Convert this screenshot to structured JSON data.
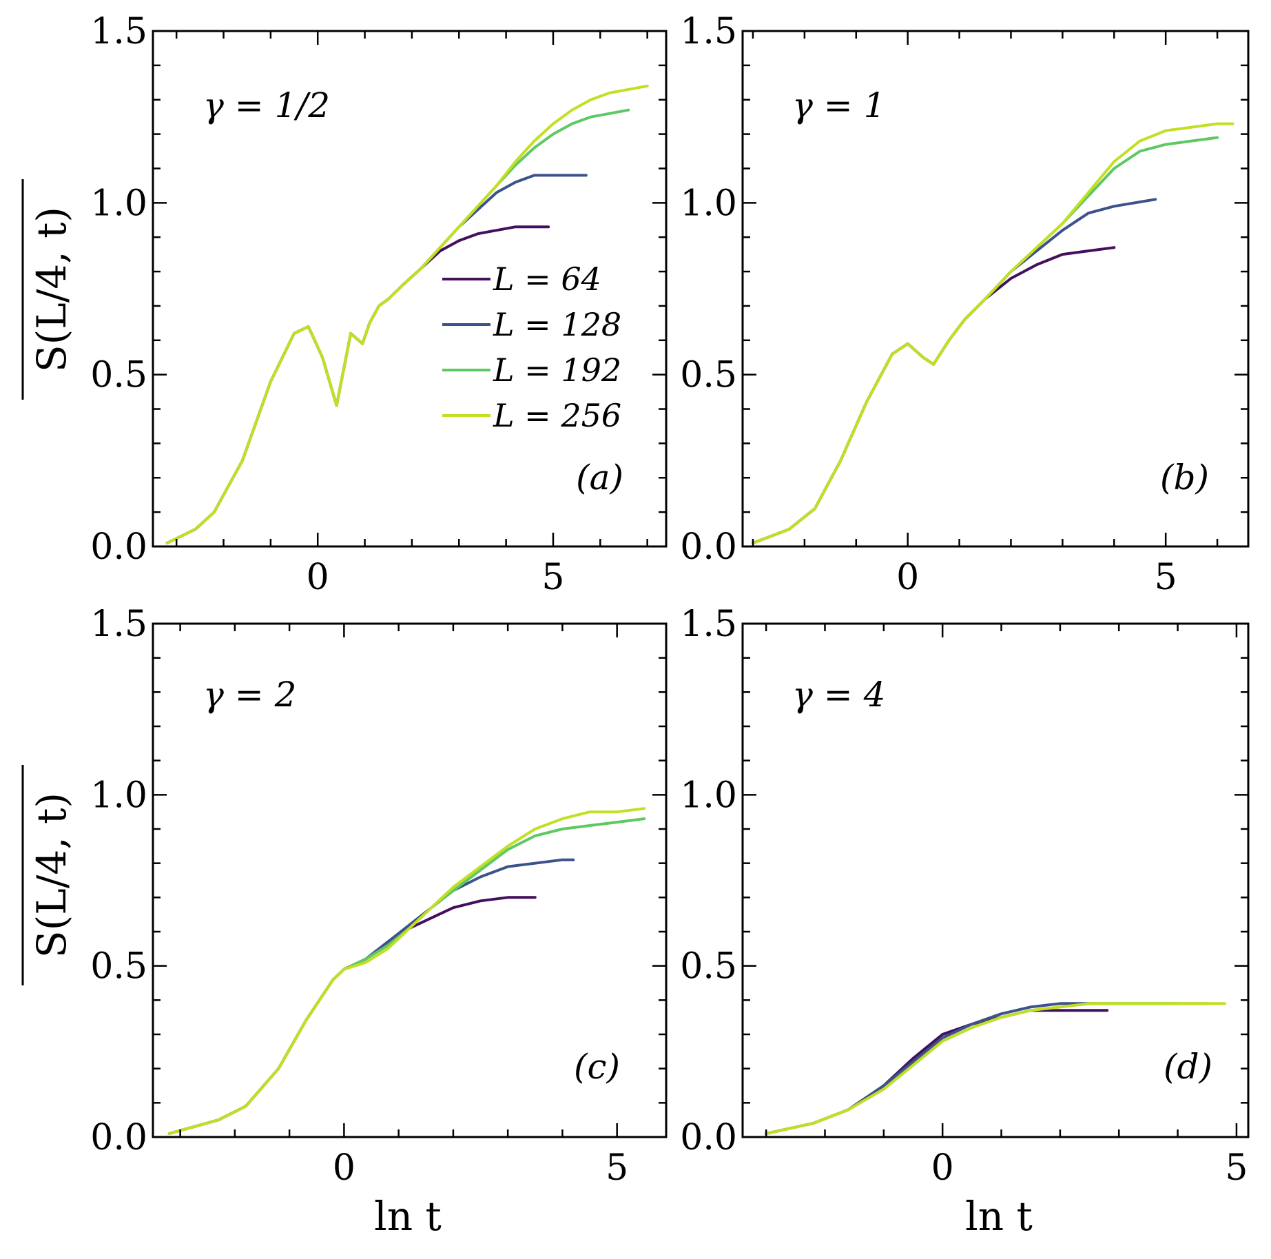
{
  "figure": {
    "ylabel": "S(L/4, t)",
    "xlabel": "ln t",
    "legend": {
      "placement": "panel (a), center-right",
      "entries": [
        "L = 64",
        "L = 128",
        "L = 192",
        "L = 256"
      ],
      "colors": [
        "#440f5c",
        "#3b528b",
        "#5ec962",
        "#c2df23"
      ]
    }
  },
  "chart_data": [
    {
      "type": "line",
      "panel_label": "(a)",
      "annotation": "γ = 1/2",
      "xlabel": "",
      "ylabel": "S(L/4, t)",
      "xlim": [
        -3.5,
        7.4
      ],
      "ylim": [
        0.0,
        1.5
      ],
      "xticks": [
        "0",
        "5"
      ],
      "yticks": [
        "0.0",
        "0.5",
        "1.0",
        "1.5"
      ],
      "legend": [
        "L = 64",
        "L = 128",
        "L = 192",
        "L = 256"
      ],
      "series": [
        {
          "name": "L = 64",
          "color": "#440f5c",
          "x": [
            -3.2,
            -2.6,
            -2.2,
            -1.6,
            -1.0,
            -0.5,
            -0.2,
            0.1,
            0.4,
            0.7,
            0.95,
            1.1,
            1.3,
            1.5,
            1.8,
            2.2,
            2.6,
            3.0,
            3.4,
            3.8,
            4.2,
            4.6,
            4.9
          ],
          "y": [
            0.01,
            0.05,
            0.1,
            0.25,
            0.48,
            0.62,
            0.64,
            0.55,
            0.41,
            0.62,
            0.59,
            0.65,
            0.7,
            0.72,
            0.76,
            0.81,
            0.86,
            0.89,
            0.91,
            0.92,
            0.93,
            0.93,
            0.93
          ]
        },
        {
          "name": "L = 128",
          "color": "#3b528b",
          "x": [
            -3.2,
            -2.6,
            -2.2,
            -1.6,
            -1.0,
            -0.5,
            -0.2,
            0.1,
            0.4,
            0.7,
            0.95,
            1.1,
            1.3,
            1.5,
            1.8,
            2.2,
            2.6,
            3.0,
            3.4,
            3.8,
            4.2,
            4.6,
            5.0,
            5.4,
            5.7
          ],
          "y": [
            0.01,
            0.05,
            0.1,
            0.25,
            0.48,
            0.62,
            0.64,
            0.55,
            0.41,
            0.62,
            0.59,
            0.65,
            0.7,
            0.72,
            0.76,
            0.81,
            0.87,
            0.93,
            0.98,
            1.03,
            1.06,
            1.08,
            1.08,
            1.08,
            1.08
          ]
        },
        {
          "name": "L = 192",
          "color": "#5ec962",
          "x": [
            -3.2,
            -2.6,
            -2.2,
            -1.6,
            -1.0,
            -0.5,
            -0.2,
            0.1,
            0.4,
            0.7,
            0.95,
            1.1,
            1.3,
            1.5,
            1.8,
            2.2,
            2.6,
            3.0,
            3.4,
            3.8,
            4.2,
            4.6,
            5.0,
            5.4,
            5.8,
            6.2,
            6.6
          ],
          "y": [
            0.01,
            0.05,
            0.1,
            0.25,
            0.48,
            0.62,
            0.64,
            0.55,
            0.41,
            0.62,
            0.59,
            0.65,
            0.7,
            0.72,
            0.76,
            0.81,
            0.87,
            0.93,
            0.99,
            1.05,
            1.11,
            1.16,
            1.2,
            1.23,
            1.25,
            1.26,
            1.27
          ]
        },
        {
          "name": "L = 256",
          "color": "#c2df23",
          "x": [
            -3.2,
            -2.6,
            -2.2,
            -1.6,
            -1.0,
            -0.5,
            -0.2,
            0.1,
            0.4,
            0.7,
            0.95,
            1.1,
            1.3,
            1.5,
            1.8,
            2.2,
            2.6,
            3.0,
            3.4,
            3.8,
            4.2,
            4.6,
            5.0,
            5.4,
            5.8,
            6.2,
            6.6,
            7.0
          ],
          "y": [
            0.01,
            0.05,
            0.1,
            0.25,
            0.48,
            0.62,
            0.64,
            0.55,
            0.41,
            0.62,
            0.59,
            0.65,
            0.7,
            0.72,
            0.76,
            0.81,
            0.87,
            0.93,
            0.99,
            1.05,
            1.12,
            1.18,
            1.23,
            1.27,
            1.3,
            1.32,
            1.33,
            1.34
          ]
        }
      ]
    },
    {
      "type": "line",
      "panel_label": "(b)",
      "annotation": "γ = 1",
      "xlabel": "",
      "ylabel": "",
      "xlim": [
        -3.2,
        6.6
      ],
      "ylim": [
        0.0,
        1.5
      ],
      "xticks": [
        "0",
        "5"
      ],
      "yticks": [
        "0.0",
        "0.5",
        "1.0",
        "1.5"
      ],
      "series": [
        {
          "name": "L = 64",
          "color": "#440f5c",
          "x": [
            -3.0,
            -2.3,
            -1.8,
            -1.3,
            -0.8,
            -0.3,
            0.0,
            0.3,
            0.5,
            0.8,
            1.1,
            1.5,
            2.0,
            2.5,
            3.0,
            3.5,
            4.0
          ],
          "y": [
            0.01,
            0.05,
            0.11,
            0.25,
            0.42,
            0.56,
            0.59,
            0.55,
            0.53,
            0.6,
            0.66,
            0.72,
            0.78,
            0.82,
            0.85,
            0.86,
            0.87
          ]
        },
        {
          "name": "L = 128",
          "color": "#3b528b",
          "x": [
            -3.0,
            -2.3,
            -1.8,
            -1.3,
            -0.8,
            -0.3,
            0.0,
            0.3,
            0.5,
            0.8,
            1.1,
            1.5,
            2.0,
            2.5,
            3.0,
            3.5,
            4.0,
            4.4,
            4.8
          ],
          "y": [
            0.01,
            0.05,
            0.11,
            0.25,
            0.42,
            0.56,
            0.59,
            0.55,
            0.53,
            0.6,
            0.66,
            0.72,
            0.8,
            0.86,
            0.92,
            0.97,
            0.99,
            1.0,
            1.01
          ]
        },
        {
          "name": "L = 192",
          "color": "#5ec962",
          "x": [
            -3.0,
            -2.3,
            -1.8,
            -1.3,
            -0.8,
            -0.3,
            0.0,
            0.3,
            0.5,
            0.8,
            1.1,
            1.5,
            2.0,
            2.5,
            3.0,
            3.5,
            4.0,
            4.5,
            5.0,
            5.5,
            6.0
          ],
          "y": [
            0.01,
            0.05,
            0.11,
            0.25,
            0.42,
            0.56,
            0.59,
            0.55,
            0.53,
            0.6,
            0.66,
            0.72,
            0.8,
            0.87,
            0.94,
            1.02,
            1.1,
            1.15,
            1.17,
            1.18,
            1.19
          ]
        },
        {
          "name": "L = 256",
          "color": "#c2df23",
          "x": [
            -3.0,
            -2.3,
            -1.8,
            -1.3,
            -0.8,
            -0.3,
            0.0,
            0.3,
            0.5,
            0.8,
            1.1,
            1.5,
            2.0,
            2.5,
            3.0,
            3.5,
            4.0,
            4.5,
            5.0,
            5.5,
            6.0,
            6.3
          ],
          "y": [
            0.01,
            0.05,
            0.11,
            0.25,
            0.42,
            0.56,
            0.59,
            0.55,
            0.53,
            0.6,
            0.66,
            0.72,
            0.8,
            0.87,
            0.94,
            1.03,
            1.12,
            1.18,
            1.21,
            1.22,
            1.23,
            1.23
          ]
        }
      ]
    },
    {
      "type": "line",
      "panel_label": "(c)",
      "annotation": "γ = 2",
      "xlabel": "ln t",
      "ylabel": "S(L/4, t)",
      "xlim": [
        -3.5,
        5.9
      ],
      "ylim": [
        0.0,
        1.5
      ],
      "xticks": [
        "0",
        "5"
      ],
      "yticks": [
        "0.0",
        "0.5",
        "1.0",
        "1.5"
      ],
      "series": [
        {
          "name": "L = 64",
          "color": "#440f5c",
          "x": [
            -3.2,
            -2.3,
            -1.8,
            -1.2,
            -0.7,
            -0.2,
            0.0,
            0.4,
            0.8,
            1.2,
            1.6,
            2.0,
            2.5,
            3.0,
            3.5
          ],
          "y": [
            0.01,
            0.05,
            0.09,
            0.2,
            0.34,
            0.46,
            0.49,
            0.52,
            0.57,
            0.61,
            0.64,
            0.67,
            0.69,
            0.7,
            0.7
          ]
        },
        {
          "name": "L = 128",
          "color": "#3b528b",
          "x": [
            -3.2,
            -2.3,
            -1.8,
            -1.2,
            -0.7,
            -0.2,
            0.0,
            0.4,
            0.8,
            1.2,
            1.6,
            2.0,
            2.5,
            3.0,
            3.5,
            4.0,
            4.2
          ],
          "y": [
            0.01,
            0.05,
            0.09,
            0.2,
            0.34,
            0.46,
            0.49,
            0.52,
            0.57,
            0.62,
            0.67,
            0.72,
            0.76,
            0.79,
            0.8,
            0.81,
            0.81
          ]
        },
        {
          "name": "L = 192",
          "color": "#5ec962",
          "x": [
            -3.2,
            -2.3,
            -1.8,
            -1.2,
            -0.7,
            -0.2,
            0.0,
            0.4,
            0.8,
            1.2,
            1.6,
            2.0,
            2.5,
            3.0,
            3.5,
            4.0,
            4.5,
            5.0,
            5.5
          ],
          "y": [
            0.01,
            0.05,
            0.09,
            0.2,
            0.34,
            0.46,
            0.49,
            0.52,
            0.56,
            0.61,
            0.67,
            0.72,
            0.78,
            0.84,
            0.88,
            0.9,
            0.91,
            0.92,
            0.93
          ]
        },
        {
          "name": "L = 256",
          "color": "#c2df23",
          "x": [
            -3.2,
            -2.3,
            -1.8,
            -1.2,
            -0.7,
            -0.2,
            0.0,
            0.4,
            0.8,
            1.2,
            1.6,
            2.0,
            2.5,
            3.0,
            3.5,
            4.0,
            4.5,
            5.0,
            5.5
          ],
          "y": [
            0.01,
            0.05,
            0.09,
            0.2,
            0.34,
            0.46,
            0.49,
            0.51,
            0.55,
            0.61,
            0.67,
            0.73,
            0.79,
            0.85,
            0.9,
            0.93,
            0.95,
            0.95,
            0.96
          ]
        }
      ]
    },
    {
      "type": "line",
      "panel_label": "(d)",
      "annotation": "γ = 4",
      "xlabel": "ln t",
      "ylabel": "",
      "xlim": [
        -3.4,
        5.2
      ],
      "ylim": [
        0.0,
        1.5
      ],
      "xticks": [
        "0",
        "5"
      ],
      "yticks": [
        "0.0",
        "0.5",
        "1.0",
        "1.5"
      ],
      "series": [
        {
          "name": "L = 64",
          "color": "#440f5c",
          "x": [
            -3.0,
            -2.2,
            -1.6,
            -1.0,
            -0.5,
            0.0,
            0.5,
            1.0,
            1.5,
            2.0,
            2.5,
            2.8
          ],
          "y": [
            0.01,
            0.04,
            0.08,
            0.15,
            0.23,
            0.3,
            0.33,
            0.35,
            0.37,
            0.37,
            0.37,
            0.37
          ]
        },
        {
          "name": "L = 128",
          "color": "#3b528b",
          "x": [
            -3.0,
            -2.2,
            -1.6,
            -1.0,
            -0.5,
            0.0,
            0.5,
            1.0,
            1.5,
            2.0,
            2.5,
            3.0,
            3.5,
            4.0
          ],
          "y": [
            0.01,
            0.04,
            0.08,
            0.15,
            0.22,
            0.29,
            0.33,
            0.36,
            0.38,
            0.39,
            0.39,
            0.39,
            0.39,
            0.39
          ]
        },
        {
          "name": "L = 192",
          "color": "#5ec962",
          "x": [
            -3.0,
            -2.2,
            -1.6,
            -1.0,
            -0.5,
            0.0,
            0.5,
            1.0,
            1.5,
            2.0,
            2.5,
            3.0,
            3.5,
            4.0,
            4.5
          ],
          "y": [
            0.01,
            0.04,
            0.08,
            0.14,
            0.21,
            0.28,
            0.32,
            0.35,
            0.37,
            0.38,
            0.39,
            0.39,
            0.39,
            0.39,
            0.39
          ]
        },
        {
          "name": "L = 256",
          "color": "#c2df23",
          "x": [
            -3.0,
            -2.2,
            -1.6,
            -1.0,
            -0.5,
            0.0,
            0.5,
            1.0,
            1.5,
            2.0,
            2.5,
            3.0,
            3.5,
            4.0,
            4.5,
            4.8
          ],
          "y": [
            0.01,
            0.04,
            0.08,
            0.14,
            0.21,
            0.28,
            0.32,
            0.35,
            0.37,
            0.38,
            0.39,
            0.39,
            0.39,
            0.39,
            0.39,
            0.39
          ]
        }
      ]
    }
  ]
}
